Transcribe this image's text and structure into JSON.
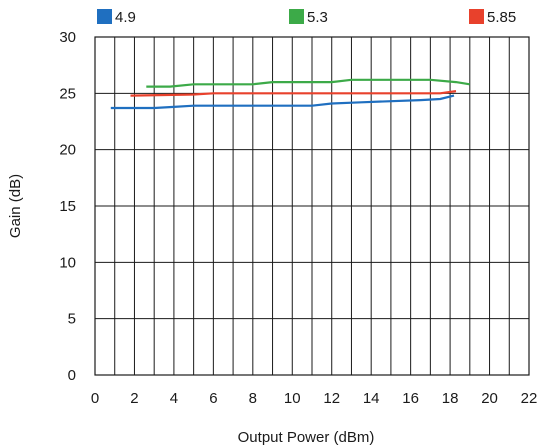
{
  "chart_data": {
    "type": "line",
    "title": "",
    "xlabel": "Output Power (dBm)",
    "ylabel": "Gain (dB)",
    "xlim": [
      0,
      22
    ],
    "ylim": [
      0,
      30
    ],
    "x_ticks": [
      0,
      2,
      4,
      6,
      8,
      10,
      12,
      14,
      16,
      18,
      20,
      22
    ],
    "y_ticks": [
      0,
      5,
      10,
      15,
      20,
      25,
      30
    ],
    "x_minor_step": 1,
    "y_major_step": 5,
    "grid": true,
    "legend_position": "top",
    "series": [
      {
        "name": "4.9",
        "color": "#1f6fc0",
        "points": [
          [
            0.8,
            23.7
          ],
          [
            3.0,
            23.7
          ],
          [
            4.0,
            23.8
          ],
          [
            5.0,
            23.9
          ],
          [
            10.0,
            23.9
          ],
          [
            11.0,
            23.9
          ],
          [
            12.0,
            24.1
          ],
          [
            13.5,
            24.2
          ],
          [
            16.5,
            24.4
          ],
          [
            17.5,
            24.5
          ],
          [
            18.2,
            24.8
          ]
        ]
      },
      {
        "name": "5.3",
        "color": "#3caa48",
        "points": [
          [
            2.6,
            25.6
          ],
          [
            3.8,
            25.6
          ],
          [
            5.0,
            25.8
          ],
          [
            8.0,
            25.8
          ],
          [
            9.0,
            26.0
          ],
          [
            12.0,
            26.0
          ],
          [
            13.0,
            26.2
          ],
          [
            17.0,
            26.2
          ],
          [
            18.3,
            26.0
          ],
          [
            19.0,
            25.8
          ]
        ]
      },
      {
        "name": "5.85",
        "color": "#e8412c",
        "points": [
          [
            1.8,
            24.8
          ],
          [
            5.0,
            24.9
          ],
          [
            6.0,
            25.0
          ],
          [
            17.5,
            25.0
          ],
          [
            18.3,
            25.2
          ]
        ]
      }
    ]
  }
}
